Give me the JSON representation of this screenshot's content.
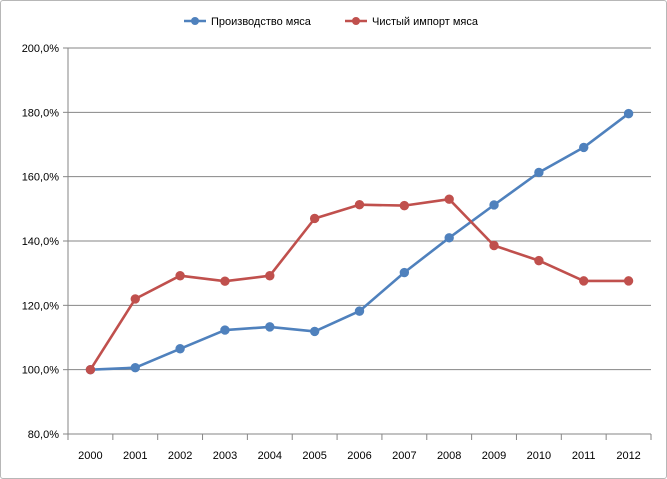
{
  "chart_data": {
    "type": "line",
    "title": "",
    "xlabel": "",
    "ylabel": "",
    "categories": [
      "2000",
      "2001",
      "2002",
      "2003",
      "2004",
      "2005",
      "2006",
      "2007",
      "2008",
      "2009",
      "2010",
      "2011",
      "2012"
    ],
    "ylim": [
      80,
      200
    ],
    "yticks": [
      80,
      100,
      120,
      140,
      160,
      180,
      200
    ],
    "ytick_labels": [
      "80,0%",
      "100,0%",
      "120,0%",
      "140,0%",
      "160,0%",
      "180,0%",
      "200,0%"
    ],
    "grid": true,
    "legend_position": "top-center",
    "series": [
      {
        "name": "Производство мяса",
        "color": "#4f81bd",
        "values": [
          100.0,
          100.6,
          106.5,
          112.3,
          113.3,
          111.9,
          118.2,
          130.2,
          141.0,
          151.2,
          161.3,
          169.1,
          179.6
        ]
      },
      {
        "name": "Чистый импорт мяса",
        "color": "#c0504d",
        "values": [
          100.0,
          122.0,
          129.2,
          127.5,
          129.2,
          147.0,
          151.3,
          151.0,
          153.0,
          138.6,
          133.9,
          127.6,
          127.6
        ]
      }
    ]
  }
}
